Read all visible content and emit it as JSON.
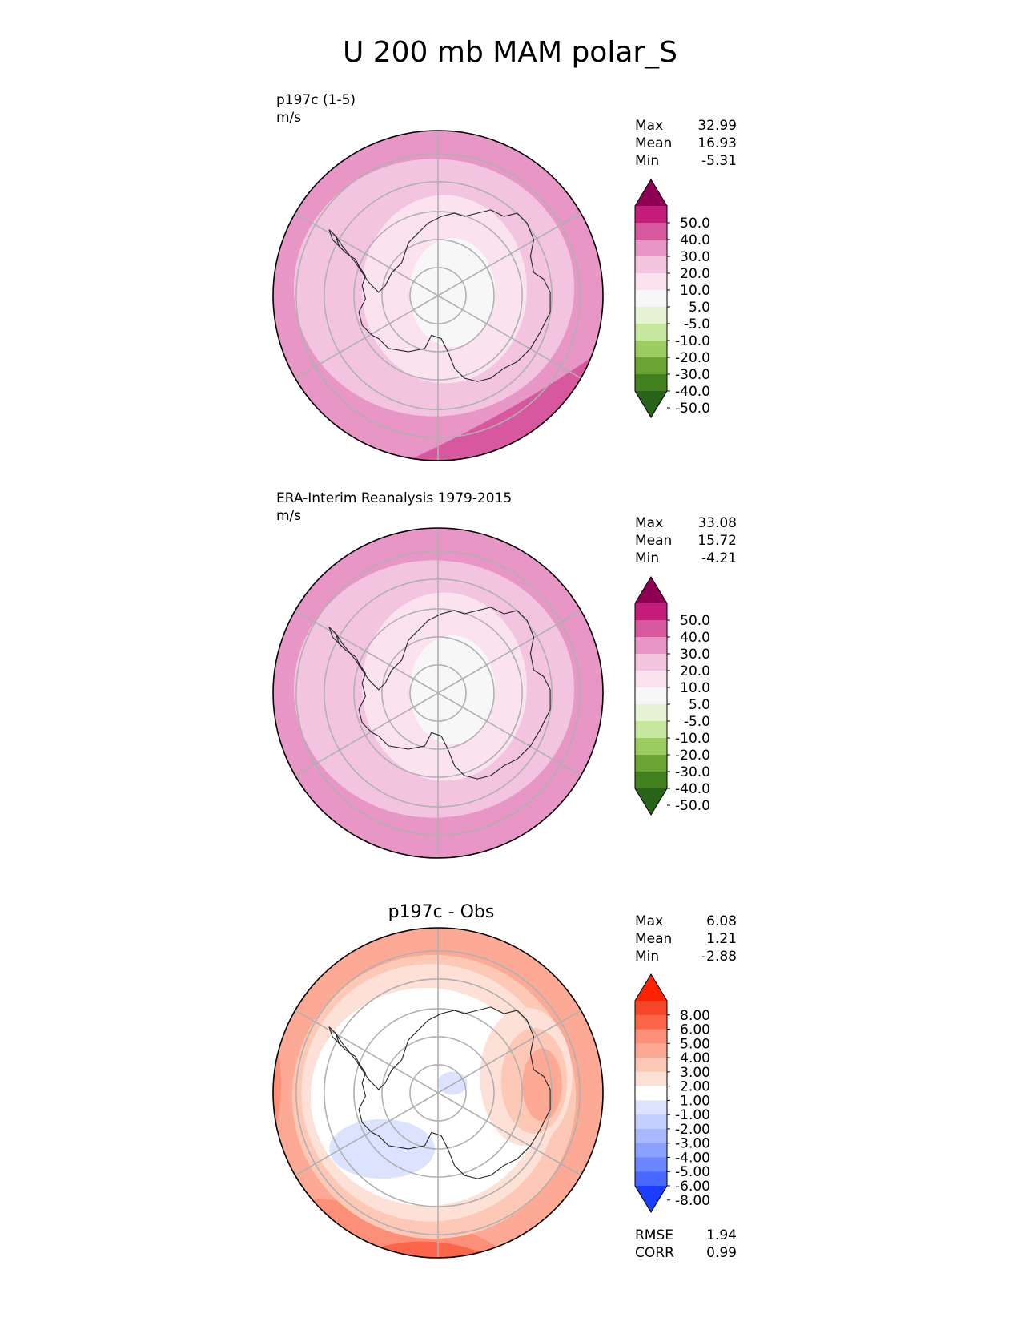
{
  "figure_title": "U 200 mb MAM polar_S",
  "chart_data": [
    {
      "type": "heatmap",
      "projection": "south polar stereographic",
      "title": "p197c (1-5)",
      "units": "m/s",
      "stats": [
        {
          "label": "Max",
          "value": "32.99"
        },
        {
          "label": "Mean",
          "value": "16.93"
        },
        {
          "label": "Min",
          "value": "-5.31"
        }
      ],
      "colorbar": {
        "levels": [
          "50.0",
          "40.0",
          "30.0",
          "20.0",
          "10.0",
          "5.0",
          "-5.0",
          "-10.0",
          "-20.0",
          "-30.0",
          "-40.0",
          "-50.0"
        ],
        "colors": [
          "#8e0152",
          "#c51b7d",
          "#d8589f",
          "#e796c5",
          "#f2c4e0",
          "#fae3ef",
          "#f7f7f7",
          "#e6f3d5",
          "#c8e79e",
          "#9ccb5f",
          "#6aa533",
          "#43811f",
          "#276419"
        ]
      },
      "field": {
        "center_value": 2,
        "inner_ring_value": 8,
        "mid_ring_value": 15,
        "outer_ring_value": 22,
        "edge_value": 28,
        "max_region_value": 33
      }
    },
    {
      "type": "heatmap",
      "projection": "south polar stereographic",
      "title": "ERA-Interim Reanalysis 1979-2015",
      "units": "m/s",
      "stats": [
        {
          "label": "Max",
          "value": "33.08"
        },
        {
          "label": "Mean",
          "value": "15.72"
        },
        {
          "label": "Min",
          "value": "-4.21"
        }
      ],
      "colorbar": {
        "levels": [
          "50.0",
          "40.0",
          "30.0",
          "20.0",
          "10.0",
          "5.0",
          "-5.0",
          "-10.0",
          "-20.0",
          "-30.0",
          "-40.0",
          "-50.0"
        ],
        "colors": [
          "#8e0152",
          "#c51b7d",
          "#d8589f",
          "#e796c5",
          "#f2c4e0",
          "#fae3ef",
          "#f7f7f7",
          "#e6f3d5",
          "#c8e79e",
          "#9ccb5f",
          "#6aa533",
          "#43811f",
          "#276419"
        ]
      },
      "field": {
        "center_value": 2,
        "inner_ring_value": 8,
        "mid_ring_value": 15,
        "outer_ring_value": 22,
        "edge_value": 28,
        "max_region_value": 33
      }
    },
    {
      "type": "heatmap",
      "projection": "south polar stereographic",
      "title": "p197c - Obs",
      "units": "",
      "stats": [
        {
          "label": "Max",
          "value": "6.08"
        },
        {
          "label": "Mean",
          "value": "1.21"
        },
        {
          "label": "Min",
          "value": "-2.88"
        }
      ],
      "metrics": [
        {
          "label": "RMSE",
          "value": "1.94"
        },
        {
          "label": "CORR",
          "value": "0.99"
        }
      ],
      "colorbar": {
        "levels": [
          "8.00",
          "6.00",
          "5.00",
          "4.00",
          "3.00",
          "2.00",
          "1.00",
          "-1.00",
          "-2.00",
          "-3.00",
          "-4.00",
          "-5.00",
          "-6.00",
          "-8.00"
        ],
        "colors": [
          "#ff2200",
          "#f5482a",
          "#fc6549",
          "#fc8f77",
          "#fcaa95",
          "#fdc9b6",
          "#fde0d6",
          "#ffffff",
          "#dbe3ff",
          "#c3d0ff",
          "#a7b9ff",
          "#8aa1ff",
          "#6b86ff",
          "#4868ff",
          "#1a3dff"
        ]
      },
      "field": {
        "center_value": 0,
        "edge_value": 3.5,
        "max_region_value": 6,
        "min_region_value": -2
      }
    }
  ]
}
